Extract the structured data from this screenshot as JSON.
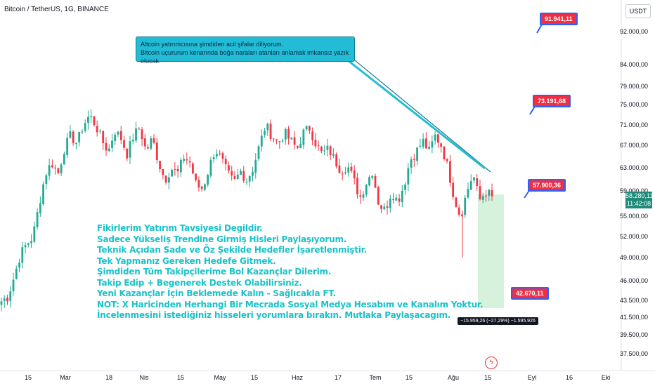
{
  "header": {
    "title": "Bitcoin / TetherUS, 1G, BINANCE",
    "currency": "USDT"
  },
  "colors": {
    "up": "#22ab94",
    "down": "#f23645",
    "target": "#ef2f43",
    "accent": "#2962ff",
    "callout": "#22bcd6",
    "promo": "#19c2c9"
  },
  "chart_data": {
    "type": "candlestick",
    "y_scale": "log",
    "ylim": [
      36500,
      98000
    ],
    "y_ticks": [
      "92.000,00",
      "84.000,00",
      "79.000,00",
      "75.000,00",
      "71.000,00",
      "67.000,00",
      "63.000,00",
      "59.000,00",
      "55.000,00",
      "52.000,00",
      "49.000,00",
      "46.000,00",
      "43.500,00",
      "41.500,00",
      "39.500,00",
      "37.500,00"
    ],
    "x_ticks": [
      "15",
      "Mar",
      "18",
      "Nis",
      "15",
      "May",
      "15",
      "Haz",
      "17",
      "Tem",
      "15",
      "Ağu",
      "15",
      "Eyl",
      "16",
      "Eki"
    ],
    "close_path": [
      43500,
      44000,
      46500,
      49500,
      51000,
      52000,
      57000,
      62000,
      64000,
      62000,
      66500,
      69000,
      67500,
      71000,
      73000,
      71000,
      68000,
      66000,
      70000,
      68500,
      65500,
      69000,
      70500,
      66000,
      68500,
      64000,
      61000,
      63000,
      62000,
      65000,
      64000,
      60000,
      59500,
      63000,
      66500,
      64500,
      62000,
      60500,
      62500,
      61000,
      63000,
      67000,
      71000,
      69000,
      67500,
      69500,
      68000,
      66500,
      69500,
      70500,
      67500,
      65500,
      66500,
      64500,
      62500,
      63500,
      61000,
      58000,
      60500,
      62500,
      57000,
      56000,
      59000,
      57500,
      60000,
      64500,
      66000,
      68000,
      66000,
      69000,
      67000,
      63000,
      58000,
      55000,
      59000,
      62000,
      57600,
      59000,
      58300
    ],
    "last_price": "58.280,11",
    "last_price_time": "11:42:08",
    "targets": [
      "91.941,11",
      "73.191,68",
      "57.900,36",
      "42.670,11"
    ],
    "measure_label": "−15.959,26 (−27,29%) −1.595.926"
  },
  "callout": {
    "line1": "Altcoin yatırımcısına şimdiden acil şifalar diliyorum.",
    "line2": "Bitcoin uçururum kenarında boğa naraları atanları anlamak imkansız yazık olucak."
  },
  "promo_lines": [
    "Fikirlerim Yatırım Tavsiyesi Degildir.",
    "Sadece Yükseliş Trendine Girmiş Hisleri Paylaşıyorum.",
    "Teknik Açıdan Sade ve Öz Şekilde Hedefler İşaretlenmiştir.",
    "Tek Yapmanız Gereken Hedefe Gitmek.",
    "Şimdiden Tüm Takipçilerime Bol Kazançlar Dilerim.",
    "Takip Edip + Begenerek Destek Olabilirsiniz.",
    "Yeni Kazançlar İçin Beklemede Kalın - Sağlıcakla FT.",
    "NOT: X Haricinden Herhangi Bir Mecrada Sosyal Medya Hesabım ve Kanalım Yoktur.",
    "İncelenmesini istediğiniz hisseleri yorumlara bırakın. Mutlaka Paylaşacagım."
  ]
}
